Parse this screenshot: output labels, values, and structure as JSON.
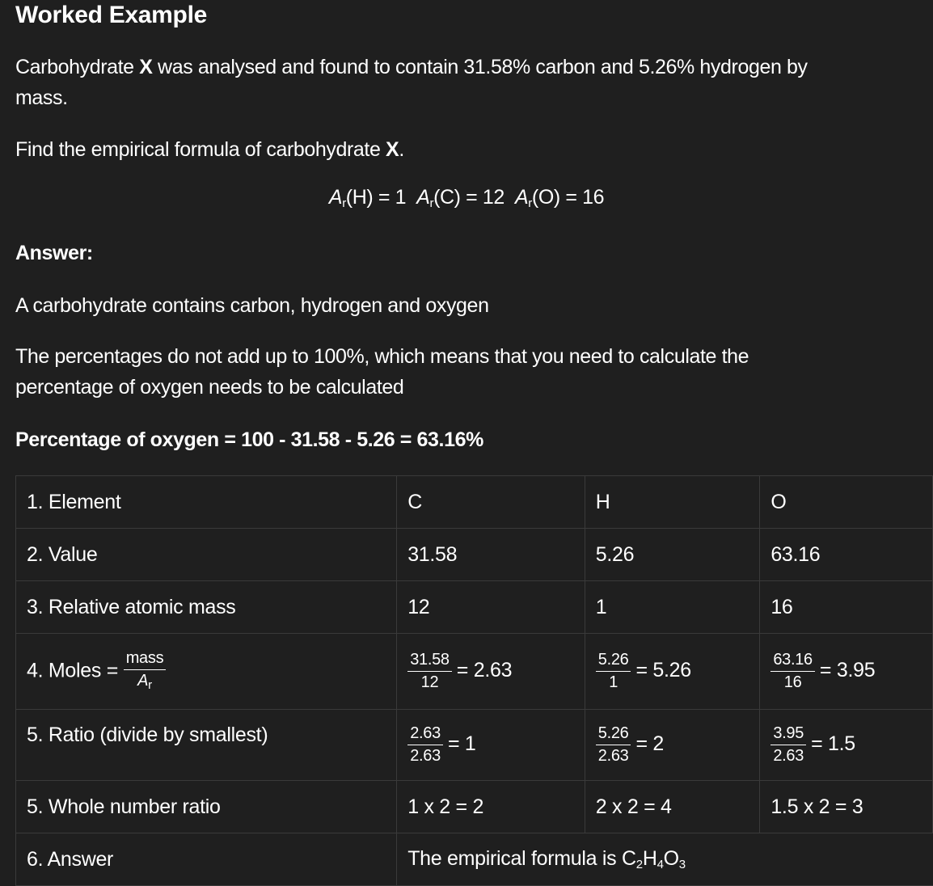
{
  "heading": "Worked Example",
  "question": {
    "line1_pre": "Carbohydrate ",
    "line1_x": "X",
    "line1_post": " was analysed and found to contain 31.58% carbon and 5.26% hydrogen by",
    "line2": "mass.",
    "find_pre": "Find the empirical formula of carbohydrate ",
    "find_x": "X",
    "find_post": ".",
    "ar_symbol": "A",
    "ar_sub": "r",
    "ar_H": "(H) = 1",
    "ar_C": "(C) = 12",
    "ar_O": "(O) = 16"
  },
  "answer": {
    "label": "Answer:",
    "line1": "A carbohydrate contains carbon, hydrogen and oxygen",
    "line2a": "The percentages do not add up to 100%, which means that you need to calculate the",
    "line2b": "percentage of oxygen needs to be calculated",
    "oxygen": "Percentage of oxygen = 100 - 31.58 - 5.26 = 63.16%"
  },
  "table": {
    "element_label": "1. Element",
    "elements": [
      "C",
      "H",
      "O"
    ],
    "value_label": "2. Value",
    "values": [
      "31.58",
      "5.26",
      "63.16"
    ],
    "mass_label": "3. Relative atomic mass",
    "masses": [
      "12",
      "1",
      "16"
    ],
    "moles_label": "4. Moles =",
    "moles_num": "mass",
    "moles_den_sym": "A",
    "moles_den_sub": "r",
    "moles": [
      {
        "num": "31.58",
        "den": "12",
        "result": "= 2.63"
      },
      {
        "num": "5.26",
        "den": "1",
        "result": "= 5.26"
      },
      {
        "num": "63.16",
        "den": "16",
        "result": "= 3.95"
      }
    ],
    "ratio_label": "5. Ratio (divide by smallest)",
    "ratios": [
      {
        "num": "2.63",
        "den": "2.63",
        "result": "= 1"
      },
      {
        "num": "5.26",
        "den": "2.63",
        "result": "= 2"
      },
      {
        "num": "3.95",
        "den": "2.63",
        "result": "= 1.5"
      }
    ],
    "whole_label": "5. Whole number ratio",
    "whole": [
      "1 x 2 = 2",
      "2 x 2 = 4",
      "1.5 x 2 = 3"
    ],
    "answer_label": "6. Answer",
    "answer_pre": "The empirical formula is C",
    "answer_sub1": "2",
    "answer_h": "H",
    "answer_sub2": "4",
    "answer_o": "O",
    "answer_sub3": "3"
  }
}
